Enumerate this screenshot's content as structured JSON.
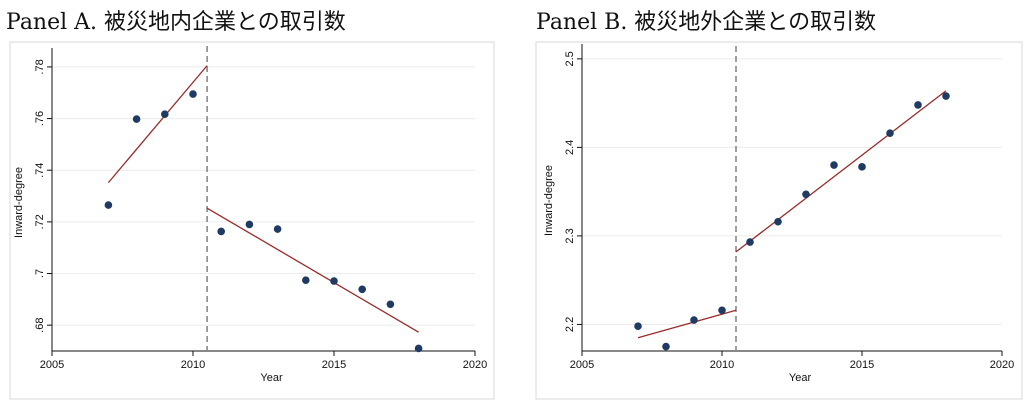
{
  "chart_data": [
    {
      "type": "scatter",
      "title": "Panel A.  被災地内企業との取引数",
      "xlabel": "Year",
      "ylabel": "Inward-degree",
      "xlim": [
        2005,
        2020
      ],
      "ylim": [
        0.67,
        0.785
      ],
      "xticks": [
        2005,
        2010,
        2015,
        2020
      ],
      "xtick_labels": [
        "2005",
        "2010",
        "2015",
        "2020"
      ],
      "yticks": [
        0.68,
        0.7,
        0.72,
        0.74,
        0.76,
        0.78
      ],
      "ytick_labels": [
        ".68",
        ".7",
        ".72",
        ".74",
        ".76",
        ".78"
      ],
      "cutoff_x": 2010.5,
      "points": [
        {
          "x": 2007,
          "y": 0.7265
        },
        {
          "x": 2008,
          "y": 0.7598
        },
        {
          "x": 2009,
          "y": 0.7617
        },
        {
          "x": 2010,
          "y": 0.7695
        },
        {
          "x": 2011,
          "y": 0.7163
        },
        {
          "x": 2012,
          "y": 0.719
        },
        {
          "x": 2013,
          "y": 0.7172
        },
        {
          "x": 2014,
          "y": 0.6974
        },
        {
          "x": 2015,
          "y": 0.6971
        },
        {
          "x": 2016,
          "y": 0.6939
        },
        {
          "x": 2017,
          "y": 0.6881
        },
        {
          "x": 2018,
          "y": 0.671
        }
      ],
      "fit_lines": [
        {
          "x": [
            2007,
            2010.5
          ],
          "y": [
            0.7352,
            0.7805
          ]
        },
        {
          "x": [
            2010.5,
            2018
          ],
          "y": [
            0.7253,
            0.6773
          ]
        }
      ],
      "grid": true,
      "colors": {
        "points": "#1f3b63",
        "fit": "#9b2b2b",
        "cutoff": "#888888",
        "grid": "#ececec"
      }
    },
    {
      "type": "scatter",
      "title": "Panel B.  被災地外企業との取引数",
      "xlabel": "Year",
      "ylabel": "Inward-degree",
      "xlim": [
        2005,
        2020
      ],
      "ylim": [
        2.17,
        2.51
      ],
      "xticks": [
        2005,
        2010,
        2015,
        2020
      ],
      "xtick_labels": [
        "2005",
        "2010",
        "2015",
        "2020"
      ],
      "yticks": [
        2.2,
        2.3,
        2.4,
        2.5
      ],
      "ytick_labels": [
        "2.2",
        "2.3",
        "2.4",
        "2.5"
      ],
      "cutoff_x": 2010.5,
      "points": [
        {
          "x": 2007,
          "y": 2.198
        },
        {
          "x": 2008,
          "y": 2.175
        },
        {
          "x": 2009,
          "y": 2.205
        },
        {
          "x": 2010,
          "y": 2.216
        },
        {
          "x": 2011,
          "y": 2.293
        },
        {
          "x": 2012,
          "y": 2.316
        },
        {
          "x": 2013,
          "y": 2.347
        },
        {
          "x": 2014,
          "y": 2.38
        },
        {
          "x": 2015,
          "y": 2.378
        },
        {
          "x": 2016,
          "y": 2.416
        },
        {
          "x": 2017,
          "y": 2.448
        },
        {
          "x": 2018,
          "y": 2.458
        }
      ],
      "fit_lines": [
        {
          "x": [
            2007,
            2010.5
          ],
          "y": [
            2.185,
            2.216
          ]
        },
        {
          "x": [
            2010.5,
            2018
          ],
          "y": [
            2.282,
            2.464
          ]
        }
      ],
      "grid": true,
      "colors": {
        "points": "#1f3b63",
        "fit": "#9b2b2b",
        "cutoff": "#888888",
        "grid": "#ececec"
      }
    }
  ]
}
